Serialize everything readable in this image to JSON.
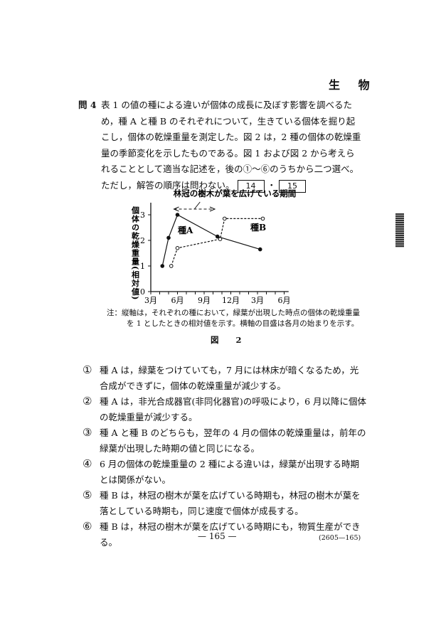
{
  "header": {
    "subject": "生 物"
  },
  "question": {
    "number": "問 4",
    "text": "表 1 の値の種による違いが個体の成長に及ぼす影響を調べるため，種 A と種 B のそれぞれについて，生きている個体を掘り起こし，個体の乾燥重量を測定した。図 2 は，2 種の個体の乾燥重量の季節変化を示したものである。図 1 および図 2 から考えられることとして適当な記述を，後の①～⑥のうちから二つ選べ。ただし，解答の順序は問わない。",
    "answer_boxes": [
      "14",
      "15"
    ],
    "separator": "・"
  },
  "chart_data": {
    "type": "line",
    "ylabel": "個体の乾燥重量(相対値)",
    "xlabel": "",
    "x_ticks": [
      3,
      6,
      9,
      12,
      15,
      18
    ],
    "x_tick_labels": [
      "3月",
      "6月",
      "9月",
      "12月",
      "3月",
      "6月"
    ],
    "y_ticks": [
      0,
      1,
      2,
      3
    ],
    "y_tick_labels": [
      "0",
      "1",
      "2",
      "3"
    ],
    "xlim": [
      3,
      18.5
    ],
    "ylim": [
      0,
      3.4
    ],
    "annotation": {
      "text": "林冠の樹木が葉を広げている期間",
      "x_range": [
        5.6,
        10.2
      ],
      "style": "dashed double arrow"
    },
    "series": [
      {
        "name": "種A",
        "marker": "filled circle",
        "line": "solid",
        "color": "#111111",
        "x": [
          4.3,
          5.0,
          6.0,
          10.5,
          15.3
        ],
        "y": [
          1.0,
          2.1,
          3.0,
          2.15,
          1.65
        ]
      },
      {
        "name": "種B",
        "marker": "open circle",
        "line": "dashed",
        "color": "#111111",
        "x": [
          5.3,
          6.0,
          10.8,
          11.3,
          15.6
        ],
        "y": [
          1.0,
          1.7,
          2.05,
          2.85,
          2.85
        ]
      }
    ],
    "grid": false
  },
  "figure": {
    "note_line1": "注：縦軸は，それぞれの種において，緑葉が出現した時点の個体の乾燥重量",
    "note_line2": "を 1 としたときの相対値を示す。横軸の目盛は各月の始まりを示す。",
    "caption": "図 2"
  },
  "choices": [
    {
      "mark": "①",
      "text": "種 A は，緑葉をつけていても，7 月には林床が暗くなるため，光合成ができずに，個体の乾燥重量が減少する。"
    },
    {
      "mark": "②",
      "text": "種 A は，非光合成器官(非同化器官)の呼吸により，6 月以降に個体の乾燥重量が減少する。"
    },
    {
      "mark": "③",
      "text": "種 A と種 B のどちらも，翌年の 4 月の個体の乾燥重量は，前年の緑葉が出現した時期の値と同じになる。"
    },
    {
      "mark": "④",
      "text": "6 月の個体の乾燥重量の 2 種による違いは，緑葉が出現する時期とは関係がない。"
    },
    {
      "mark": "⑤",
      "text": "種 B は，林冠の樹木が葉を広げている時期も，林冠の樹木が葉を落としている時期も，同じ速度で個体が成長する。"
    },
    {
      "mark": "⑥",
      "text": "種 B は，林冠の樹木が葉を広げている時期にも，物質生産ができる。"
    }
  ],
  "footer": {
    "page_number": "— 165 —",
    "code": "(2605—165)"
  }
}
